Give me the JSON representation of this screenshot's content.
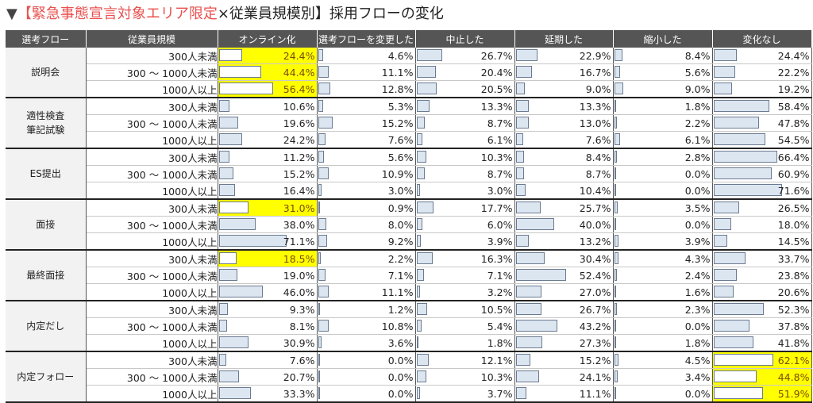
{
  "title": {
    "prefix": "▼",
    "red": "【緊急事態宣言対象エリア限定",
    "rest": "×従業員規模別】採用フローの変化"
  },
  "colors": {
    "bar_fill": "#dce6f1",
    "bar_border": "#6b7a8f",
    "highlight": "#ffff00",
    "header_bg": "#555555",
    "accent": "#e8514f"
  },
  "chart_data": {
    "type": "table",
    "row_header": "選考フロー",
    "size_header": "従業員規模",
    "columns": [
      "オンライン化",
      "選考フローを変更した",
      "中止した",
      "延期した",
      "縮小した",
      "変化なし"
    ],
    "groups": [
      {
        "flow": "説明会",
        "rows": [
          {
            "size": "300人未満",
            "values": [
              "24.4%",
              "4.6%",
              "26.7%",
              "22.9%",
              "8.4%",
              "24.4%"
            ],
            "highlight": [
              0
            ]
          },
          {
            "size": "300 ～ 1000人未満",
            "values": [
              "44.4%",
              "11.1%",
              "20.4%",
              "16.7%",
              "5.6%",
              "22.2%"
            ],
            "highlight": [
              0
            ]
          },
          {
            "size": "1000人以上",
            "values": [
              "56.4%",
              "12.8%",
              "20.5%",
              "9.0%",
              "9.0%",
              "19.2%"
            ],
            "highlight": [
              0
            ]
          }
        ]
      },
      {
        "flow": "適性検査\n筆記試験",
        "rows": [
          {
            "size": "300人未満",
            "values": [
              "10.6%",
              "5.3%",
              "13.3%",
              "13.3%",
              "1.8%",
              "58.4%"
            ],
            "highlight": []
          },
          {
            "size": "300 ～ 1000人未満",
            "values": [
              "19.6%",
              "15.2%",
              "8.7%",
              "13.0%",
              "2.2%",
              "47.8%"
            ],
            "highlight": []
          },
          {
            "size": "1000人以上",
            "values": [
              "24.2%",
              "7.6%",
              "6.1%",
              "7.6%",
              "6.1%",
              "54.5%"
            ],
            "highlight": []
          }
        ]
      },
      {
        "flow": "ES提出",
        "rows": [
          {
            "size": "300人未満",
            "values": [
              "11.2%",
              "5.6%",
              "10.3%",
              "8.4%",
              "2.8%",
              "66.4%"
            ],
            "highlight": []
          },
          {
            "size": "300 ～ 1000人未満",
            "values": [
              "15.2%",
              "10.9%",
              "8.7%",
              "8.7%",
              "0.0%",
              "60.9%"
            ],
            "highlight": []
          },
          {
            "size": "1000人以上",
            "values": [
              "16.4%",
              "3.0%",
              "3.0%",
              "10.4%",
              "0.0%",
              "71.6%"
            ],
            "highlight": []
          }
        ]
      },
      {
        "flow": "面接",
        "rows": [
          {
            "size": "300人未満",
            "values": [
              "31.0%",
              "0.9%",
              "17.7%",
              "25.7%",
              "3.5%",
              "26.5%"
            ],
            "highlight": [
              0
            ]
          },
          {
            "size": "300 ～ 1000人未満",
            "values": [
              "38.0%",
              "8.0%",
              "6.0%",
              "40.0%",
              "0.0%",
              "18.0%"
            ],
            "highlight": []
          },
          {
            "size": "1000人以上",
            "values": [
              "71.1%",
              "9.2%",
              "3.9%",
              "13.2%",
              "3.9%",
              "14.5%"
            ],
            "highlight": []
          }
        ]
      },
      {
        "flow": "最終面接",
        "rows": [
          {
            "size": "300人未満",
            "values": [
              "18.5%",
              "2.2%",
              "16.3%",
              "30.4%",
              "4.3%",
              "33.7%"
            ],
            "highlight": [
              0
            ]
          },
          {
            "size": "300 ～ 1000人未満",
            "values": [
              "19.0%",
              "7.1%",
              "7.1%",
              "52.4%",
              "2.4%",
              "23.8%"
            ],
            "highlight": []
          },
          {
            "size": "1000人以上",
            "values": [
              "46.0%",
              "11.1%",
              "3.2%",
              "27.0%",
              "1.6%",
              "20.6%"
            ],
            "highlight": []
          }
        ]
      },
      {
        "flow": "内定だし",
        "rows": [
          {
            "size": "300人未満",
            "values": [
              "9.3%",
              "1.2%",
              "10.5%",
              "26.7%",
              "2.3%",
              "52.3%"
            ],
            "highlight": []
          },
          {
            "size": "300 ～ 1000人未満",
            "values": [
              "8.1%",
              "10.8%",
              "5.4%",
              "43.2%",
              "0.0%",
              "37.8%"
            ],
            "highlight": []
          },
          {
            "size": "1000人以上",
            "values": [
              "30.9%",
              "3.6%",
              "1.8%",
              "27.3%",
              "1.8%",
              "41.8%"
            ],
            "highlight": []
          }
        ]
      },
      {
        "flow": "内定フォロー",
        "rows": [
          {
            "size": "300人未満",
            "values": [
              "7.6%",
              "0.0%",
              "12.1%",
              "15.2%",
              "4.5%",
              "62.1%"
            ],
            "highlight": [
              5
            ]
          },
          {
            "size": "300 ～ 1000人未満",
            "values": [
              "20.7%",
              "0.0%",
              "10.3%",
              "24.1%",
              "3.4%",
              "44.8%"
            ],
            "highlight": [
              5
            ]
          },
          {
            "size": "1000人以上",
            "values": [
              "33.3%",
              "0.0%",
              "3.7%",
              "11.1%",
              "0.0%",
              "51.9%"
            ],
            "highlight": [
              5
            ]
          }
        ]
      }
    ]
  }
}
